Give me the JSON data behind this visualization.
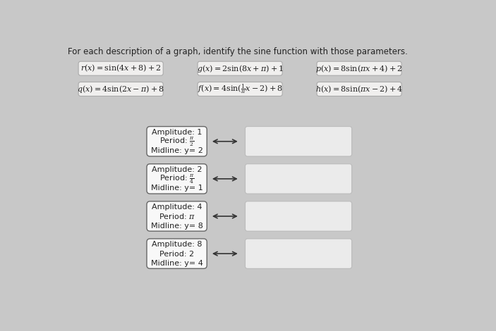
{
  "title": "For each description of a graph, identify the sine function with those parameters.",
  "background_color": "#c8c8c8",
  "functions_row1": [
    "$r(x) = \\sin(4x + 8) + 2$",
    "$g(x) = 2\\sin(8x + \\pi) + 1$",
    "$p(x) = 8\\sin(\\pi x + 4) + 2$"
  ],
  "functions_row2": [
    "$q(x) = 4\\sin(2x - \\pi) + 8$",
    "$f(x) = 4\\sin(\\frac{1}{\\pi}x - 2) + 8$",
    "$h(x) = 8\\sin(\\pi x - 2) + 4$"
  ],
  "clue_boxes": [
    {
      "amplitude": "1",
      "period_text": "$\\frac{\\pi}{2}$",
      "midline": "y= 2"
    },
    {
      "amplitude": "2",
      "period_text": "$\\frac{\\pi}{4}$",
      "midline": "y= 1"
    },
    {
      "amplitude": "4",
      "period_text": "$\\pi$",
      "midline": "y= 8"
    },
    {
      "amplitude": "8",
      "period_text": "2",
      "midline": "y= 4"
    }
  ],
  "func_box_color": "#f0efee",
  "func_box_edge": "#aaaaaa",
  "clue_box_color": "#f8f8f8",
  "clue_box_edge": "#666666",
  "answer_box_color": "#ebebeb",
  "answer_box_edge": "#bbbbbb",
  "text_color": "#222222"
}
